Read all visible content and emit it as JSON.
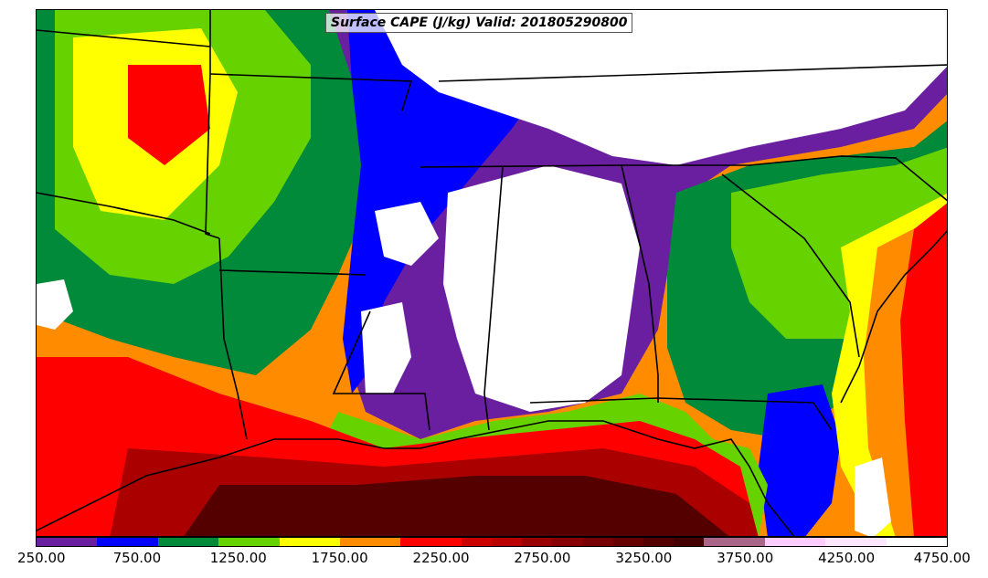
{
  "title": "Surface CAPE (J/kg) Valid: 201805290800",
  "colorbar": {
    "tick_labels": [
      "250.00",
      "750.00",
      "1250.00",
      "1750.00",
      "2250.00",
      "2750.00",
      "3250.00",
      "3750.00",
      "4250.00",
      "4750.00"
    ],
    "colors": [
      "#6a1fa0",
      "#6a1fa0",
      "#0000ff",
      "#0000ff",
      "#008a3a",
      "#008a3a",
      "#66d200",
      "#66d200",
      "#ffff00",
      "#ffff00",
      "#ff8c00",
      "#ff8c00",
      "#ff0000",
      "#ff0000",
      "#cc0000",
      "#bb0000",
      "#990000",
      "#880000",
      "#770000",
      "#660000",
      "#550000",
      "#440000",
      "#aa6688",
      "#aa6688",
      "#ffccff",
      "#ffccff",
      "#ffe6ff",
      "#ffe6ff",
      "#ffffff",
      "#ffffff"
    ]
  },
  "map_fill_colors": {
    "below_range": "#ffffff",
    "purple": "#6a1fa0",
    "blue": "#0000ff",
    "dark_green": "#008a3a",
    "light_green": "#66d200",
    "yellow": "#ffff00",
    "orange": "#ff8c00",
    "red": "#ff0000",
    "dark_red": "#aa0000",
    "darkest_red": "#550000"
  }
}
